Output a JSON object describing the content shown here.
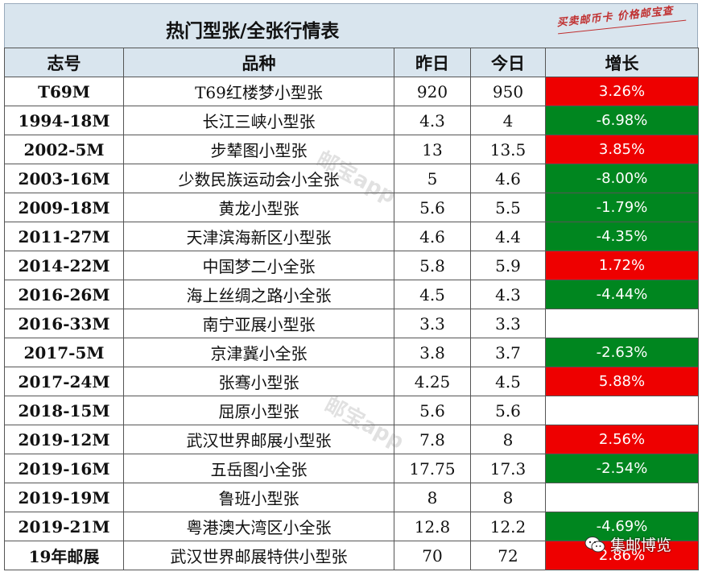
{
  "title": "热门型张/全张行情表",
  "stamp_text": "买卖邮币卡 价格邮宝查",
  "watermark": "邮宝app",
  "headers": {
    "code": "志号",
    "name": "品种",
    "yesterday": "昨日",
    "today": "今日",
    "change": "增长"
  },
  "rows": [
    {
      "code": "T69M",
      "name": "T69红楼梦小型张",
      "yesterday": "920",
      "today": "950",
      "change": "3.26%",
      "dir": "up"
    },
    {
      "code": "1994-18M",
      "name": "长江三峡小型张",
      "yesterday": "4.3",
      "today": "4",
      "change": "-6.98%",
      "dir": "down"
    },
    {
      "code": "2002-5M",
      "name": "步辇图小型张",
      "yesterday": "13",
      "today": "13.5",
      "change": "3.85%",
      "dir": "up"
    },
    {
      "code": "2003-16M",
      "name": "少数民族运动会小全张",
      "yesterday": "5",
      "today": "4.6",
      "change": "-8.00%",
      "dir": "down"
    },
    {
      "code": "2009-18M",
      "name": "黄龙小型张",
      "yesterday": "5.6",
      "today": "5.5",
      "change": "-1.79%",
      "dir": "down"
    },
    {
      "code": "2011-27M",
      "name": "天津滨海新区小型张",
      "yesterday": "4.6",
      "today": "4.4",
      "change": "-4.35%",
      "dir": "down"
    },
    {
      "code": "2014-22M",
      "name": "中国梦二小全张",
      "yesterday": "5.8",
      "today": "5.9",
      "change": "1.72%",
      "dir": "up"
    },
    {
      "code": "2016-26M",
      "name": "海上丝绸之路小全张",
      "yesterday": "4.5",
      "today": "4.3",
      "change": "-4.44%",
      "dir": "down"
    },
    {
      "code": "2016-33M",
      "name": "南宁亚展小型张",
      "yesterday": "3.3",
      "today": "3.3",
      "change": "",
      "dir": "flat"
    },
    {
      "code": "2017-5M",
      "name": "京津冀小全张",
      "yesterday": "3.8",
      "today": "3.7",
      "change": "-2.63%",
      "dir": "down"
    },
    {
      "code": "2017-24M",
      "name": "张骞小型张",
      "yesterday": "4.25",
      "today": "4.5",
      "change": "5.88%",
      "dir": "up"
    },
    {
      "code": "2018-15M",
      "name": "屈原小型张",
      "yesterday": "5.6",
      "today": "5.6",
      "change": "",
      "dir": "flat"
    },
    {
      "code": "2019-12M",
      "name": "武汉世界邮展小型张",
      "yesterday": "7.8",
      "today": "8",
      "change": "2.56%",
      "dir": "up"
    },
    {
      "code": "2019-16M",
      "name": "五岳图小全张",
      "yesterday": "17.75",
      "today": "17.3",
      "change": "-2.54%",
      "dir": "down"
    },
    {
      "code": "2019-19M",
      "name": "鲁班小型张",
      "yesterday": "8",
      "today": "8",
      "change": "",
      "dir": "flat"
    },
    {
      "code": "2019-21M",
      "name": "粤港澳大湾区小全张",
      "yesterday": "12.8",
      "today": "12.2",
      "change": "-4.69%",
      "dir": "down"
    },
    {
      "code": "19年邮展",
      "name": "武汉世界邮展特供小型张",
      "yesterday": "70",
      "today": "72",
      "change": "2.86%",
      "dir": "up"
    }
  ],
  "badge": {
    "icon": "wechat-icon",
    "label": "集邮博览"
  },
  "colors": {
    "up": "#ee0000",
    "down": "#00861f",
    "header_bg": "#d9e5ee"
  }
}
